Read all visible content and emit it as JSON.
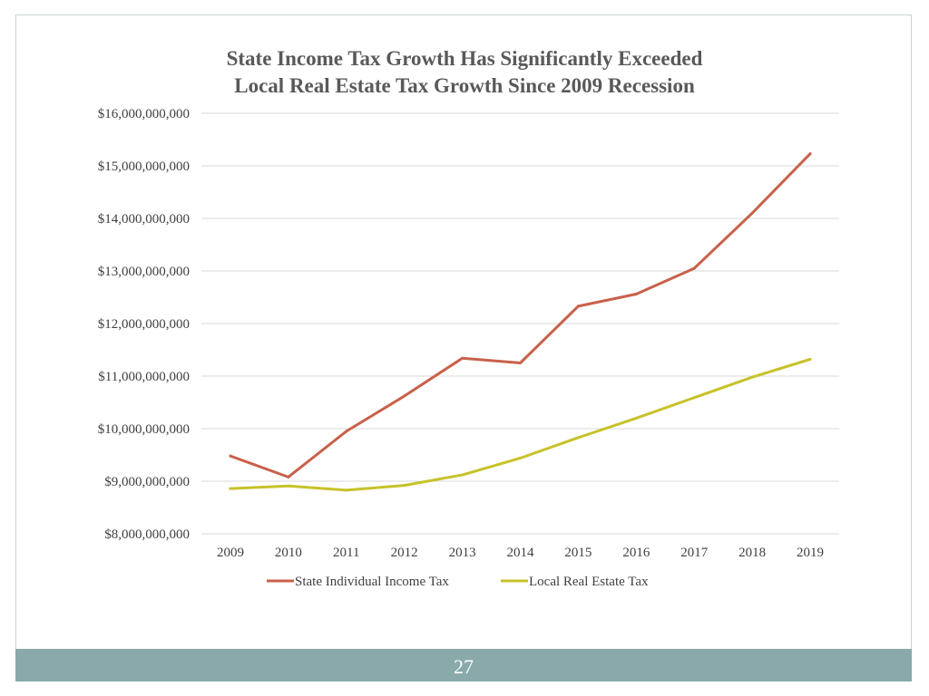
{
  "chart_data": {
    "type": "line",
    "title_lines": [
      "State Income Tax Growth Has Significantly Exceeded",
      "Local Real Estate Tax Growth Since 2009 Recession"
    ],
    "categories": [
      "2009",
      "2010",
      "2011",
      "2012",
      "2013",
      "2014",
      "2015",
      "2016",
      "2017",
      "2018",
      "2019"
    ],
    "series": [
      {
        "name": "State Individual Income Tax",
        "color": "#c8614a",
        "values": [
          9480000000,
          9080000000,
          9950000000,
          10620000000,
          11340000000,
          11250000000,
          12330000000,
          12560000000,
          13050000000,
          14100000000,
          15230000000
        ]
      },
      {
        "name": "Local Real Estate Tax",
        "color": "#c7c22a",
        "values": [
          8860000000,
          8910000000,
          8830000000,
          8920000000,
          9120000000,
          9440000000,
          9830000000,
          10200000000,
          10590000000,
          10980000000,
          11320000000
        ]
      }
    ],
    "y_ticks": [
      {
        "value": 16000000000,
        "label": "$16,000,000,000"
      },
      {
        "value": 15000000000,
        "label": "$15,000,000,000"
      },
      {
        "value": 14000000000,
        "label": "$14,000,000,000"
      },
      {
        "value": 13000000000,
        "label": "$13,000,000,000"
      },
      {
        "value": 12000000000,
        "label": "$12,000,000,000"
      },
      {
        "value": 11000000000,
        "label": "$11,000,000,000"
      },
      {
        "value": 10000000000,
        "label": "$10,000,000,000"
      },
      {
        "value": 9000000000,
        "label": "$9,000,000,000"
      },
      {
        "value": 8000000000,
        "label": "$8,000,000,000"
      }
    ],
    "ylim": [
      8000000000,
      16000000000
    ],
    "grid": true,
    "legend_position": "bottom",
    "gridline_color": "#d9d9d9",
    "text_color": "#404040",
    "title_color": "#595959"
  },
  "footer": {
    "page_number": "27",
    "bar_color": "#8aa9aa"
  }
}
